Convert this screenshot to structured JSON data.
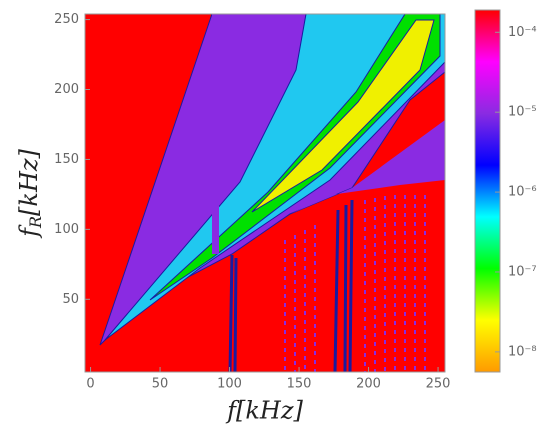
{
  "chart_data": {
    "type": "contour",
    "x_label": "f[kHz]",
    "y_label": {
      "symbol": "f",
      "subscript": "R",
      "unit": "[kHz]"
    },
    "xlim": [
      -4,
      255
    ],
    "xticks": [
      0,
      50,
      100,
      150,
      200,
      250
    ],
    "ylim": [
      -2,
      254
    ],
    "yticks": [
      50,
      100,
      150,
      200,
      250
    ],
    "colorbar": {
      "log": true,
      "lim": [
        5.6e-09,
        0.00019
      ],
      "ticks": [
        {
          "value": 0.0001,
          "label": "10⁻⁴"
        },
        {
          "value": 1e-05,
          "label": "10⁻⁵"
        },
        {
          "value": 1e-06,
          "label": "10⁻⁶"
        },
        {
          "value": 1e-07,
          "label": "10⁻⁷"
        },
        {
          "value": 1e-08,
          "label": "10⁻⁸"
        }
      ],
      "colors": [
        "#ff9a00",
        "#ffff00",
        "#00ff00",
        "#00ffff",
        "#0000ff",
        "#8a2be2",
        "#ff00ff",
        "#ff0000"
      ]
    }
  }
}
